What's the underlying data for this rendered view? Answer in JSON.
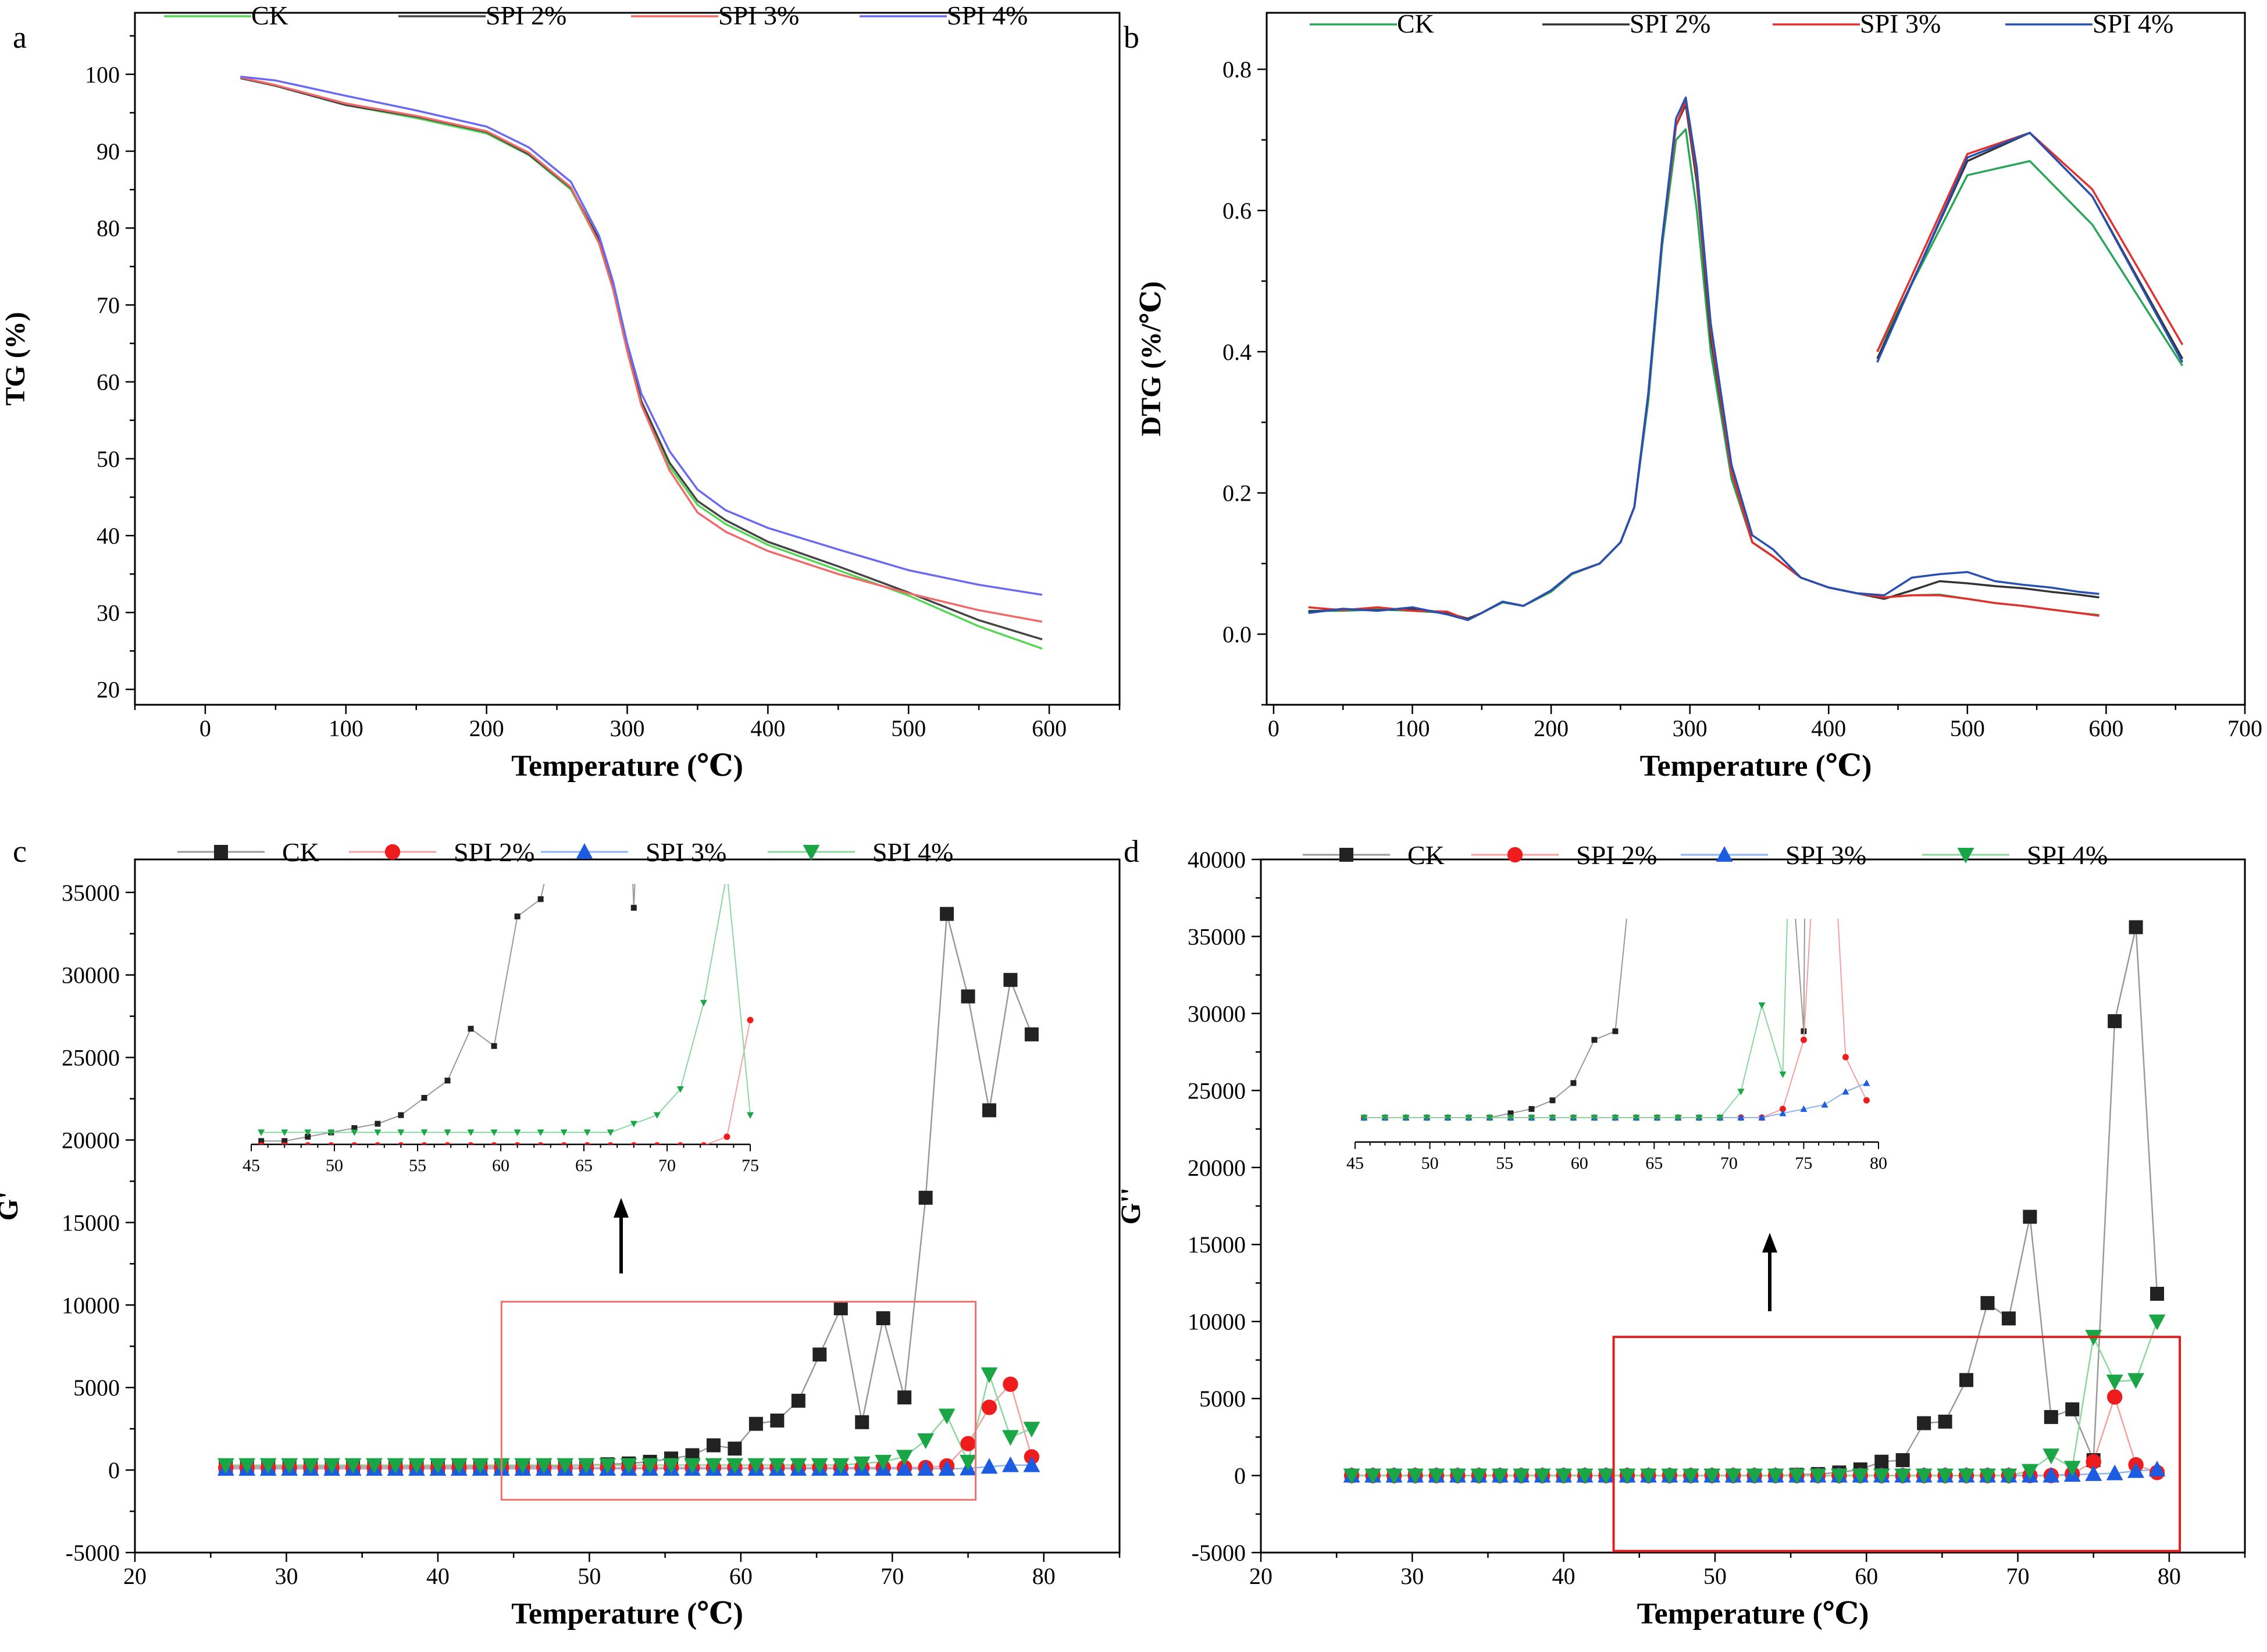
{
  "figure": {
    "panel_labels": [
      "a",
      "b",
      "c",
      "d"
    ]
  },
  "chart_data": [
    {
      "id": "a",
      "type": "line",
      "panel_label": "a",
      "xlabel": "Temperature (℃)",
      "ylabel": "TG (%)",
      "xlim": [
        -50,
        650
      ],
      "ylim": [
        18,
        108
      ],
      "xticks": [
        0,
        100,
        200,
        300,
        400,
        500,
        600
      ],
      "yticks": [
        20,
        30,
        40,
        50,
        60,
        70,
        80,
        90,
        100
      ],
      "legend": "top",
      "series": [
        {
          "name": "CK",
          "color": "#55d655",
          "x": [
            25,
            50,
            100,
            150,
            200,
            230,
            260,
            280,
            290,
            300,
            310,
            330,
            350,
            370,
            400,
            450,
            500,
            550,
            595
          ],
          "y": [
            99.5,
            98.5,
            96,
            94.3,
            92.3,
            89.5,
            85,
            78,
            72,
            64,
            57,
            49,
            44,
            41.5,
            38.8,
            35.5,
            32.2,
            28.2,
            25.3
          ]
        },
        {
          "name": "SPI 2%",
          "color": "#444444",
          "x": [
            25,
            50,
            100,
            150,
            200,
            230,
            260,
            280,
            290,
            300,
            310,
            330,
            350,
            370,
            400,
            450,
            500,
            550,
            595
          ],
          "y": [
            99.5,
            98.5,
            96,
            94.5,
            92.5,
            89.6,
            85.2,
            78.5,
            72.5,
            64.5,
            57.5,
            49.5,
            44.5,
            42,
            39.2,
            36,
            32.6,
            29,
            26.5
          ]
        },
        {
          "name": "SPI 3%",
          "color": "#f06a6a",
          "x": [
            25,
            50,
            100,
            150,
            200,
            230,
            260,
            280,
            290,
            300,
            310,
            330,
            350,
            370,
            400,
            450,
            500,
            550,
            595
          ],
          "y": [
            99.6,
            98.6,
            96.2,
            94.6,
            92.6,
            89.8,
            85.3,
            78,
            72,
            64,
            57,
            48.5,
            43,
            40.5,
            38,
            35,
            32.5,
            30.3,
            28.8
          ]
        },
        {
          "name": "SPI 4%",
          "color": "#6a6af0",
          "x": [
            25,
            50,
            100,
            150,
            200,
            230,
            260,
            280,
            290,
            300,
            310,
            330,
            350,
            370,
            400,
            450,
            500,
            550,
            595
          ],
          "y": [
            99.7,
            99.2,
            97.2,
            95.3,
            93.2,
            90.5,
            86,
            79,
            73,
            65,
            58.5,
            51,
            46,
            43.3,
            41,
            38.2,
            35.5,
            33.6,
            32.3
          ]
        }
      ]
    },
    {
      "id": "b",
      "type": "line",
      "panel_label": "b",
      "xlabel": "Temperature (℃)",
      "ylabel": "DTG (%/℃)",
      "xlim": [
        -5,
        700
      ],
      "ylim": [
        -0.1,
        0.88
      ],
      "xticks": [
        0,
        100,
        200,
        300,
        400,
        500,
        600,
        700
      ],
      "yticks": [
        0.0,
        0.2,
        0.4,
        0.6,
        0.8
      ],
      "ytick_labels": [
        "0.0",
        "0.2",
        "0.4",
        "0.6",
        "0.8"
      ],
      "legend": "top",
      "series": [
        {
          "name": "CK",
          "color": "#2aa55a",
          "x": [
            25,
            50,
            75,
            100,
            125,
            140,
            150,
            165,
            180,
            200,
            215,
            235,
            250,
            260,
            270,
            280,
            290,
            297,
            305,
            315,
            330,
            345,
            360,
            380,
            400,
            420,
            440,
            460,
            480,
            500,
            520,
            540,
            560,
            580,
            595
          ],
          "y": [
            0.033,
            0.033,
            0.035,
            0.033,
            0.03,
            0.02,
            0.03,
            0.045,
            0.04,
            0.06,
            0.085,
            0.1,
            0.13,
            0.18,
            0.33,
            0.55,
            0.7,
            0.715,
            0.6,
            0.4,
            0.22,
            0.13,
            0.11,
            0.08,
            0.066,
            0.058,
            0.052,
            0.055,
            0.056,
            0.05,
            0.044,
            0.04,
            0.035,
            0.03,
            0.027
          ],
          "inset": {
            "x": [
              435,
              500,
              545,
              590,
              655
            ],
            "y": [
              0.4,
              0.65,
              0.67,
              0.58,
              0.38
            ]
          }
        },
        {
          "name": "SPI 2%",
          "color": "#333333",
          "x": [
            25,
            50,
            75,
            100,
            125,
            140,
            150,
            165,
            180,
            200,
            215,
            235,
            250,
            260,
            270,
            280,
            290,
            297,
            305,
            315,
            330,
            345,
            360,
            380,
            400,
            420,
            440,
            460,
            480,
            500,
            520,
            540,
            560,
            580,
            595
          ],
          "y": [
            0.032,
            0.035,
            0.034,
            0.036,
            0.03,
            0.022,
            0.03,
            0.046,
            0.04,
            0.062,
            0.086,
            0.1,
            0.13,
            0.18,
            0.34,
            0.56,
            0.72,
            0.75,
            0.64,
            0.42,
            0.23,
            0.13,
            0.11,
            0.08,
            0.066,
            0.058,
            0.05,
            0.062,
            0.075,
            0.072,
            0.068,
            0.065,
            0.06,
            0.056,
            0.052
          ],
          "inset": {
            "x": [
              435,
              500,
              545,
              590,
              655
            ],
            "y": [
              0.39,
              0.67,
              0.71,
              0.62,
              0.39
            ]
          }
        },
        {
          "name": "SPI 3%",
          "color": "#e03030",
          "x": [
            25,
            50,
            75,
            100,
            125,
            140,
            150,
            165,
            180,
            200,
            215,
            235,
            250,
            260,
            270,
            280,
            290,
            297,
            305,
            315,
            330,
            345,
            360,
            380,
            400,
            420,
            440,
            460,
            480,
            500,
            520,
            540,
            560,
            580,
            595
          ],
          "y": [
            0.038,
            0.034,
            0.038,
            0.033,
            0.032,
            0.02,
            0.03,
            0.046,
            0.04,
            0.062,
            0.086,
            0.1,
            0.13,
            0.18,
            0.34,
            0.56,
            0.72,
            0.755,
            0.65,
            0.43,
            0.23,
            0.13,
            0.11,
            0.08,
            0.066,
            0.058,
            0.052,
            0.055,
            0.055,
            0.05,
            0.044,
            0.04,
            0.035,
            0.03,
            0.026
          ],
          "inset": {
            "x": [
              435,
              500,
              545,
              590,
              655
            ],
            "y": [
              0.4,
              0.68,
              0.71,
              0.63,
              0.41
            ]
          }
        },
        {
          "name": "SPI 4%",
          "color": "#2850b0",
          "x": [
            25,
            50,
            75,
            100,
            125,
            140,
            150,
            165,
            180,
            200,
            215,
            235,
            250,
            260,
            270,
            280,
            290,
            297,
            305,
            315,
            330,
            345,
            360,
            380,
            400,
            420,
            440,
            460,
            480,
            500,
            520,
            540,
            560,
            580,
            595
          ],
          "y": [
            0.03,
            0.036,
            0.033,
            0.038,
            0.028,
            0.02,
            0.03,
            0.046,
            0.04,
            0.062,
            0.086,
            0.1,
            0.13,
            0.18,
            0.34,
            0.56,
            0.73,
            0.76,
            0.66,
            0.44,
            0.24,
            0.14,
            0.12,
            0.08,
            0.066,
            0.058,
            0.055,
            0.08,
            0.085,
            0.088,
            0.075,
            0.07,
            0.066,
            0.06,
            0.057
          ],
          "inset": {
            "x": [
              435,
              500,
              545,
              590,
              655
            ],
            "y": [
              0.385,
              0.675,
              0.71,
              0.62,
              0.385
            ]
          }
        }
      ]
    },
    {
      "id": "c",
      "type": "scatter",
      "panel_label": "c",
      "xlabel": "Temperature (℃)",
      "ylabel": "G'",
      "xlim": [
        20,
        85
      ],
      "ylim": [
        -5000,
        37000
      ],
      "xticks": [
        20,
        30,
        40,
        50,
        60,
        70,
        80
      ],
      "yticks": [
        -5000,
        0,
        5000,
        10000,
        15000,
        20000,
        25000,
        30000,
        35000
      ],
      "legend": "top",
      "x": [
        26,
        27.4,
        28.8,
        30.2,
        31.6,
        33,
        34.4,
        35.8,
        37.2,
        38.6,
        40,
        41.4,
        42.8,
        44.2,
        45.6,
        47,
        48.4,
        49.8,
        51.2,
        52.6,
        54,
        55.4,
        56.8,
        58.2,
        59.6,
        61,
        62.4,
        63.8,
        65.2,
        66.6,
        68,
        69.4,
        70.8,
        72.2,
        73.6,
        75,
        76.4,
        77.8,
        79.2
      ],
      "series": [
        {
          "name": "CK",
          "color": "#222222",
          "line": "#999999",
          "marker": "square",
          "values": [
            200,
            200,
            200,
            200,
            200,
            200,
            200,
            200,
            200,
            200,
            200,
            200,
            200,
            200,
            200,
            200,
            250,
            300,
            350,
            400,
            500,
            700,
            900,
            1500,
            1300,
            2800,
            3000,
            4200,
            7000,
            9800,
            2900,
            9200,
            4400,
            16500,
            33700,
            28700,
            21800,
            29700,
            26400
          ]
        },
        {
          "name": "SPI 2%",
          "color": "#ee1c1c",
          "line": "#f4a0a0",
          "marker": "circle",
          "values": [
            150,
            150,
            150,
            150,
            150,
            150,
            150,
            150,
            150,
            150,
            150,
            150,
            150,
            150,
            150,
            150,
            150,
            150,
            150,
            150,
            150,
            150,
            150,
            150,
            150,
            150,
            150,
            150,
            150,
            150,
            150,
            150,
            150,
            150,
            250,
            1600,
            3800,
            5200,
            800
          ]
        },
        {
          "name": "SPI 3%",
          "color": "#1c5ce0",
          "line": "#8cb4f0",
          "marker": "triangle-up",
          "values": [
            80,
            80,
            80,
            80,
            80,
            80,
            80,
            80,
            80,
            80,
            80,
            80,
            80,
            80,
            80,
            80,
            80,
            80,
            80,
            80,
            80,
            80,
            80,
            80,
            80,
            80,
            80,
            80,
            80,
            80,
            80,
            80,
            80,
            80,
            80,
            100,
            200,
            300,
            300
          ]
        },
        {
          "name": "SPI 4%",
          "color": "#1aa546",
          "line": "#8cd7a0",
          "marker": "triangle-down",
          "values": [
            300,
            300,
            300,
            300,
            300,
            300,
            300,
            300,
            300,
            300,
            300,
            300,
            300,
            300,
            300,
            300,
            300,
            300,
            300,
            300,
            300,
            300,
            300,
            300,
            300,
            300,
            300,
            300,
            300,
            300,
            400,
            500,
            800,
            1800,
            3300,
            500,
            5800,
            2000,
            2500
          ]
        }
      ],
      "annotation": "inset zoom of 45-75 ℃ region (boxed)"
    },
    {
      "id": "d",
      "type": "scatter",
      "panel_label": "d",
      "xlabel": "Temperature (℃)",
      "ylabel": "G''",
      "xlim": [
        20,
        85
      ],
      "ylim": [
        -5000,
        40000
      ],
      "xticks": [
        20,
        30,
        40,
        50,
        60,
        70,
        80
      ],
      "yticks": [
        -5000,
        0,
        5000,
        10000,
        15000,
        20000,
        25000,
        30000,
        35000,
        40000
      ],
      "legend": "top",
      "x": [
        26,
        27.4,
        28.8,
        30.2,
        31.6,
        33,
        34.4,
        35.8,
        37.2,
        38.6,
        40,
        41.4,
        42.8,
        44.2,
        45.6,
        47,
        48.4,
        49.8,
        51.2,
        52.6,
        54,
        55.4,
        56.8,
        58.2,
        59.6,
        61,
        62.4,
        63.8,
        65.2,
        66.6,
        68,
        69.4,
        70.8,
        72.2,
        73.6,
        75,
        76.4,
        77.8,
        79.2
      ],
      "series": [
        {
          "name": "CK",
          "color": "#222222",
          "line": "#999999",
          "marker": "square",
          "values": [
            0,
            0,
            0,
            0,
            0,
            0,
            0,
            0,
            0,
            0,
            0,
            0,
            0,
            0,
            0,
            0,
            0,
            0,
            0,
            0,
            0,
            50,
            100,
            200,
            400,
            900,
            1000,
            3400,
            3500,
            6200,
            11200,
            10200,
            16800,
            3800,
            4300,
            1000,
            29500,
            35600,
            11800
          ]
        },
        {
          "name": "SPI 2%",
          "color": "#ee1c1c",
          "line": "#f4a0a0",
          "marker": "circle",
          "values": [
            0,
            0,
            0,
            0,
            0,
            0,
            0,
            0,
            0,
            0,
            0,
            0,
            0,
            0,
            0,
            0,
            0,
            0,
            0,
            0,
            0,
            0,
            0,
            0,
            0,
            0,
            0,
            0,
            0,
            0,
            0,
            0,
            0,
            0,
            100,
            900,
            5100,
            700,
            200
          ]
        },
        {
          "name": "SPI 3%",
          "color": "#1c5ce0",
          "line": "#8cb4f0",
          "marker": "triangle-up",
          "values": [
            0,
            0,
            0,
            0,
            0,
            0,
            0,
            0,
            0,
            0,
            0,
            0,
            0,
            0,
            0,
            0,
            0,
            0,
            0,
            0,
            0,
            0,
            0,
            0,
            0,
            0,
            0,
            0,
            0,
            0,
            0,
            0,
            0,
            0,
            50,
            100,
            150,
            300,
            400
          ]
        },
        {
          "name": "SPI 4%",
          "color": "#1aa546",
          "line": "#8cd7a0",
          "marker": "triangle-down",
          "values": [
            0,
            0,
            0,
            0,
            0,
            0,
            0,
            0,
            0,
            0,
            0,
            0,
            0,
            0,
            0,
            0,
            0,
            0,
            0,
            0,
            0,
            0,
            0,
            0,
            0,
            0,
            0,
            0,
            0,
            0,
            0,
            0,
            300,
            1300,
            500,
            9000,
            6100,
            6200,
            10000
          ]
        }
      ],
      "annotation": "inset zoom of 45-80 ℃ region (boxed)"
    }
  ]
}
